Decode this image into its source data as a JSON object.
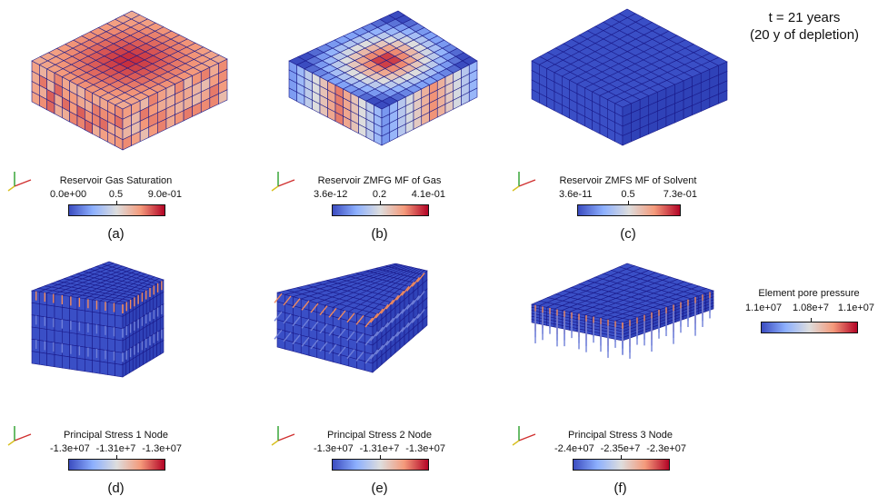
{
  "time_note": {
    "line1": "t = 21 years",
    "line2": "(20 y of depletion)"
  },
  "colors": {
    "cold": "#3b4cc0",
    "warm": "#b40426",
    "grid_line": "#1a1a8a",
    "vector_tip": "#f08a5d"
  },
  "panels": [
    {
      "id": "a",
      "caption": "(a)",
      "field": "gas-saturation",
      "colorbar": {
        "title": "Reservoir Gas Saturation",
        "min": "0.0e+00",
        "mid": "0.5",
        "max": "9.0e-01"
      }
    },
    {
      "id": "b",
      "caption": "(b)",
      "field": "zmfg",
      "colorbar": {
        "title": "Reservoir ZMFG MF of Gas",
        "min": "3.6e-12",
        "mid": "0.2",
        "max": "4.1e-01"
      }
    },
    {
      "id": "c",
      "caption": "(c)",
      "field": "zmfs",
      "colorbar": {
        "title": "Reservoir ZMFS MF of Solvent",
        "min": "3.6e-11",
        "mid": "0.5",
        "max": "7.3e-01"
      }
    },
    {
      "id": "d",
      "caption": "(d)",
      "field": "stress1",
      "colorbar": {
        "title": "Principal Stress 1 Node",
        "min": "-1.3e+07",
        "mid": "-1.31e+7",
        "max": "-1.3e+07"
      }
    },
    {
      "id": "e",
      "caption": "(e)",
      "field": "stress2",
      "colorbar": {
        "title": "Principal Stress 2 Node",
        "min": "-1.3e+07",
        "mid": "-1.31e+7",
        "max": "-1.3e+07"
      }
    },
    {
      "id": "f",
      "caption": "(f)",
      "field": "stress3",
      "colorbar": {
        "title": "Principal Stress 3 Node",
        "min": "-2.4e+07",
        "mid": "-2.35e+7",
        "max": "-2.3e+07"
      }
    }
  ],
  "pore_pressure_legend": {
    "title": "Element pore pressure",
    "min": "1.1e+07",
    "mid": "1.08e+7",
    "max": "1.1e+07"
  },
  "axes_labels": {
    "x": "X",
    "y": "Y",
    "z": "Z"
  }
}
